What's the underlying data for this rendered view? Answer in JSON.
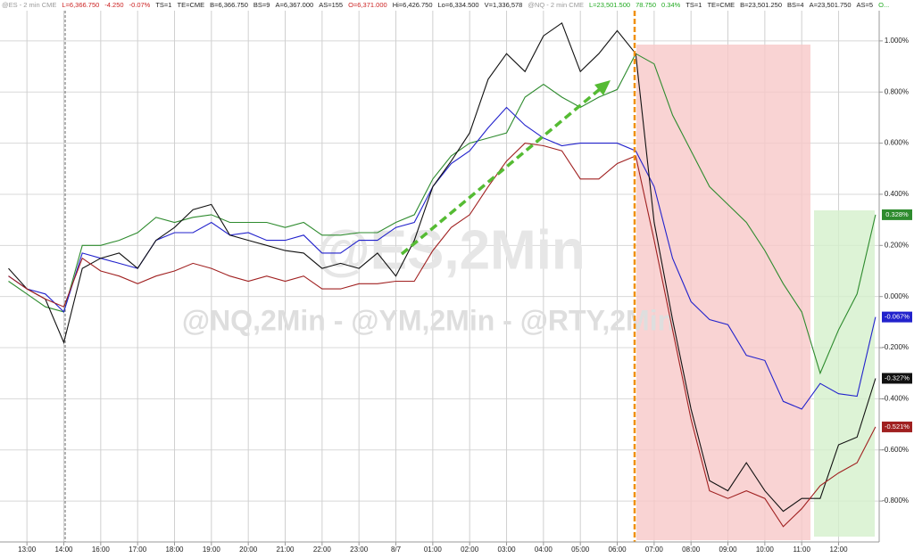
{
  "chart_data": {
    "type": "line",
    "header": [
      "@ES - 2 min CME",
      "L=6,366.750",
      "-4.250",
      "-0.07%",
      "TS=1",
      "TE=CME",
      "B=6,366.750",
      "BS=9",
      "A=6,367.000",
      "AS=155",
      "O=6,371.000",
      "Hi=6,426.750",
      "Lo=6,334.500",
      "V=1,336,578",
      "@NQ - 2 min CME",
      "L=23,501.500",
      "78.750",
      "0.34%",
      "TS=1",
      "TE=CME",
      "B=23,501.250",
      "BS=4",
      "A=23,501.750",
      "AS=5",
      "O..."
    ],
    "header_colors": [
      "#999999",
      "#cc2222",
      "#cc2222",
      "#cc2222",
      "#222222",
      "#222222",
      "#222222",
      "#222222",
      "#222222",
      "#222222",
      "#cc2222",
      "#222222",
      "#222222",
      "#222222",
      "#999999",
      "#22aa22",
      "#22aa22",
      "#22aa22",
      "#222222",
      "#222222",
      "#222222",
      "#222222",
      "#222222",
      "#222222",
      "#22aa22"
    ],
    "watermark": "@ES,2Min",
    "watermark_sub": "@NQ,2Min - @YM,2Min - @RTY,2Min",
    "x": [
      -0.5,
      0,
      0.5,
      1,
      1.5,
      2,
      2.5,
      3,
      3.5,
      4,
      4.5,
      5,
      5.5,
      6,
      6.5,
      7,
      7.5,
      8,
      8.5,
      9,
      9.5,
      10,
      10.5,
      11,
      11.5,
      12,
      12.5,
      13,
      13.5,
      14,
      14.5,
      15,
      15.5,
      16,
      16.5,
      17,
      17.5,
      18,
      18.5,
      19,
      19.5,
      20,
      20.5,
      21,
      21.5,
      22,
      22.5,
      23
    ],
    "xlim": [
      -0.73,
      23.1
    ],
    "xticks": [
      {
        "value": 0,
        "label": "13:00"
      },
      {
        "value": 1,
        "label": "14:00"
      },
      {
        "value": 2,
        "label": "16:00"
      },
      {
        "value": 3,
        "label": "17:00"
      },
      {
        "value": 4,
        "label": "18:00"
      },
      {
        "value": 5,
        "label": "19:00"
      },
      {
        "value": 6,
        "label": "20:00"
      },
      {
        "value": 7,
        "label": "21:00"
      },
      {
        "value": 8,
        "label": "22:00"
      },
      {
        "value": 9,
        "label": "23:00"
      },
      {
        "value": 10,
        "label": "8/7"
      },
      {
        "value": 11,
        "label": "01:00"
      },
      {
        "value": 12,
        "label": "02:00"
      },
      {
        "value": 13,
        "label": "03:00"
      },
      {
        "value": 14,
        "label": "04:00"
      },
      {
        "value": 15,
        "label": "05:00"
      },
      {
        "value": 16,
        "label": "06:00"
      },
      {
        "value": 17,
        "label": "07:00"
      },
      {
        "value": 18,
        "label": "08:00"
      },
      {
        "value": 19,
        "label": "09:00"
      },
      {
        "value": 20,
        "label": "10:00"
      },
      {
        "value": 21,
        "label": "11:00"
      },
      {
        "value": 22,
        "label": "12:00"
      }
    ],
    "ylim": [
      -0.96,
      1.16
    ],
    "yticks": [
      {
        "value": 1,
        "label": "1.000%"
      },
      {
        "value": 0.8,
        "label": "0.800%"
      },
      {
        "value": 0.6,
        "label": "0.600%"
      },
      {
        "value": 0.4,
        "label": "0.400%"
      },
      {
        "value": 0.2,
        "label": "0.200%"
      },
      {
        "value": 0,
        "label": "0.000%"
      },
      {
        "value": -0.2,
        "label": "-0.200%"
      },
      {
        "value": -0.4,
        "label": "-0.400%"
      },
      {
        "value": -0.6,
        "label": "-0.600%"
      },
      {
        "value": -0.8,
        "label": "-0.800%"
      }
    ],
    "grid": true,
    "series": [
      {
        "color": "#2e8b2e",
        "last_label": "0.328%",
        "values": [
          0.06,
          0.01,
          -0.04,
          -0.06,
          0.2,
          0.2,
          0.22,
          0.25,
          0.31,
          0.29,
          0.31,
          0.32,
          0.29,
          0.29,
          0.29,
          0.27,
          0.29,
          0.24,
          0.24,
          0.25,
          0.25,
          0.29,
          0.32,
          0.46,
          0.55,
          0.6,
          0.62,
          0.64,
          0.78,
          0.83,
          0.78,
          0.74,
          0.78,
          0.81,
          0.95,
          0.91,
          0.71,
          0.57,
          0.43,
          0.36,
          0.29,
          0.18,
          0.05,
          -0.06,
          -0.3,
          -0.13,
          0.01,
          0.32
        ]
      },
      {
        "color": "#2222cc",
        "last_label": "-0.067%",
        "values": [
          0.08,
          0.03,
          0.01,
          -0.06,
          0.17,
          0.15,
          0.13,
          0.11,
          0.22,
          0.25,
          0.25,
          0.29,
          0.24,
          0.25,
          0.22,
          0.22,
          0.24,
          0.17,
          0.17,
          0.22,
          0.22,
          0.27,
          0.29,
          0.43,
          0.52,
          0.57,
          0.66,
          0.74,
          0.67,
          0.62,
          0.59,
          0.6,
          0.6,
          0.6,
          0.57,
          0.43,
          0.15,
          -0.02,
          -0.09,
          -0.11,
          -0.23,
          -0.25,
          -0.41,
          -0.44,
          -0.34,
          -0.38,
          -0.39,
          -0.08
        ]
      },
      {
        "color": "#111111",
        "last_label": "-0.327%",
        "values": [
          0.11,
          0.03,
          -0.01,
          -0.18,
          0.11,
          0.15,
          0.17,
          0.11,
          0.22,
          0.27,
          0.34,
          0.36,
          0.24,
          0.22,
          0.2,
          0.18,
          0.17,
          0.11,
          0.13,
          0.11,
          0.17,
          0.08,
          0.22,
          0.43,
          0.53,
          0.64,
          0.85,
          0.95,
          0.88,
          1.02,
          1.07,
          0.88,
          0.95,
          1.04,
          0.95,
          0.29,
          -0.09,
          -0.44,
          -0.72,
          -0.76,
          -0.65,
          -0.76,
          -0.84,
          -0.79,
          -0.79,
          -0.58,
          -0.55,
          -0.32
        ]
      },
      {
        "color": "#a02020",
        "last_label": "-0.521%",
        "values": [
          0.08,
          0.03,
          -0.01,
          -0.04,
          0.15,
          0.1,
          0.08,
          0.05,
          0.08,
          0.1,
          0.13,
          0.11,
          0.08,
          0.06,
          0.08,
          0.06,
          0.08,
          0.03,
          0.03,
          0.05,
          0.05,
          0.06,
          0.06,
          0.18,
          0.27,
          0.32,
          0.43,
          0.53,
          0.6,
          0.59,
          0.57,
          0.46,
          0.46,
          0.52,
          0.55,
          0.22,
          -0.13,
          -0.48,
          -0.76,
          -0.79,
          -0.76,
          -0.79,
          -0.9,
          -0.83,
          -0.74,
          -0.69,
          -0.65,
          -0.51
        ]
      }
    ]
  }
}
